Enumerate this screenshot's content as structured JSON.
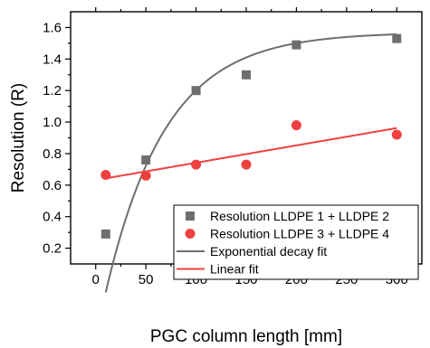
{
  "chart_data": {
    "type": "scatter",
    "xlabel": "PGC column length [mm]",
    "ylabel": "Resolution (R)",
    "xlim": [
      -25,
      325
    ],
    "ylim": [
      0.1,
      1.7
    ],
    "x_ticks": [
      0,
      50,
      100,
      150,
      200,
      250,
      300
    ],
    "y_ticks": [
      0.2,
      0.4,
      0.6,
      0.8,
      1.0,
      1.2,
      1.4,
      1.6
    ],
    "y_tick_labels": [
      "0.2",
      "0.4",
      "0.6",
      "0.8",
      "1.0",
      "1.2",
      "1.4",
      "1.6"
    ],
    "grid": false,
    "legend_position": "bottom-right",
    "series": [
      {
        "name": "Resolution LLDPE 1 + LLDPE 2",
        "marker": "square",
        "color": "#6e6e6e",
        "x": [
          10,
          50,
          100,
          150,
          200,
          300
        ],
        "y": [
          0.29,
          0.76,
          1.2,
          1.3,
          1.49,
          1.53
        ]
      },
      {
        "name": "Resolution LLDPE 3 + LLDPE 4",
        "marker": "circle",
        "color": "#ef4040",
        "x": [
          10,
          50,
          100,
          150,
          200,
          300
        ],
        "y": [
          0.665,
          0.66,
          0.73,
          0.73,
          0.98,
          0.92
        ]
      }
    ],
    "fits": [
      {
        "name": "Exponential decay fit",
        "type": "exponential",
        "color": "#6e6e6e",
        "x_range": [
          10,
          300
        ],
        "a": 1.57,
        "b": 1.95,
        "x0": 0,
        "t": 60
      },
      {
        "name": "Linear fit",
        "type": "linear",
        "color": "#ef4040",
        "x_range": [
          10,
          300
        ],
        "slope": 0.0011,
        "intercept": 0.632
      }
    ]
  }
}
